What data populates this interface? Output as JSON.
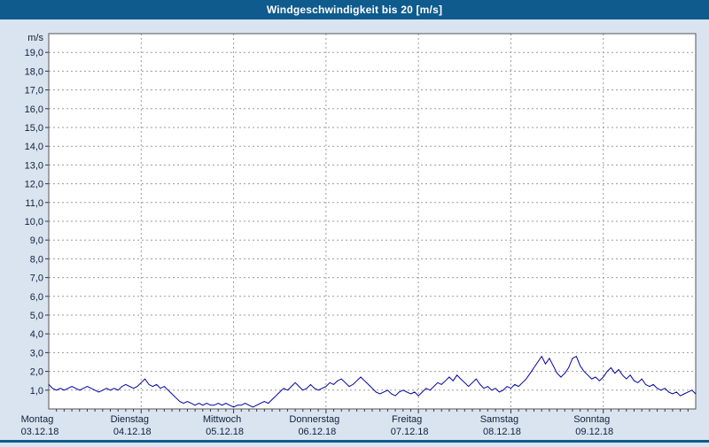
{
  "title": "Windgeschwindigkeit bis 20 [m/s]",
  "colors": {
    "title_bg": "#0f5b8d",
    "title_text": "#ffffff",
    "page_bg": "#dae4f0",
    "plot_bg": "#ffffff",
    "grid": "#9b9b9b",
    "plot_border": "#555555",
    "tick": "#333333",
    "line": "#0000a0",
    "axis_text": "#10203c"
  },
  "y_axis": {
    "unit_label": "m/s",
    "min": 0,
    "max": 20,
    "tick_labels": [
      "19,0",
      "18,0",
      "17,0",
      "16,0",
      "15,0",
      "14,0",
      "13,0",
      "12,0",
      "11,0",
      "10,0",
      "9,0",
      "8,0",
      "7,0",
      "6,0",
      "5,0",
      "4,0",
      "3,0",
      "2,0",
      "1,0"
    ]
  },
  "x_axis": {
    "days": [
      {
        "name": "Montag",
        "date": "03.12.18"
      },
      {
        "name": "Dienstag",
        "date": "04.12.18"
      },
      {
        "name": "Mittwoch",
        "date": "05.12.18"
      },
      {
        "name": "Donnerstag",
        "date": "06.12.18"
      },
      {
        "name": "Freitag",
        "date": "07.12.18"
      },
      {
        "name": "Samstag",
        "date": "08.12.18"
      },
      {
        "name": "Sonntag",
        "date": "09.12.18"
      }
    ]
  },
  "chart_data": {
    "type": "line",
    "title": "Windgeschwindigkeit bis 20 [m/s]",
    "ylabel": "m/s",
    "ylim": [
      0,
      20
    ],
    "grid": true,
    "x_axis_note": "hourly samples from Montag 03.12.18 00:00 to Sonntag 09.12.18 24:00",
    "categories": [
      "Montag 03.12.18",
      "Dienstag 04.12.18",
      "Mittwoch 05.12.18",
      "Donnerstag 06.12.18",
      "Freitag 07.12.18",
      "Samstag 08.12.18",
      "Sonntag 09.12.18"
    ],
    "series": [
      {
        "name": "Windgeschwindigkeit",
        "values": [
          1.3,
          1.1,
          1.0,
          1.1,
          1.0,
          1.1,
          1.2,
          1.1,
          1.0,
          1.1,
          1.2,
          1.1,
          1.0,
          0.9,
          1.0,
          1.1,
          1.0,
          1.1,
          1.0,
          1.2,
          1.3,
          1.2,
          1.1,
          1.2,
          1.4,
          1.6,
          1.3,
          1.2,
          1.3,
          1.1,
          1.2,
          1.0,
          0.8,
          0.6,
          0.4,
          0.3,
          0.4,
          0.3,
          0.2,
          0.3,
          0.2,
          0.3,
          0.2,
          0.2,
          0.3,
          0.2,
          0.3,
          0.2,
          0.1,
          0.2,
          0.2,
          0.3,
          0.2,
          0.1,
          0.2,
          0.3,
          0.4,
          0.3,
          0.5,
          0.7,
          0.9,
          1.1,
          1.0,
          1.2,
          1.4,
          1.2,
          1.0,
          1.1,
          1.3,
          1.1,
          1.0,
          1.1,
          1.2,
          1.4,
          1.3,
          1.5,
          1.6,
          1.4,
          1.2,
          1.3,
          1.5,
          1.7,
          1.5,
          1.3,
          1.1,
          0.9,
          0.8,
          0.9,
          1.0,
          0.8,
          0.7,
          0.9,
          1.0,
          0.9,
          0.8,
          0.9,
          0.7,
          0.9,
          1.1,
          1.0,
          1.2,
          1.4,
          1.3,
          1.5,
          1.7,
          1.5,
          1.8,
          1.6,
          1.4,
          1.2,
          1.4,
          1.6,
          1.3,
          1.1,
          1.2,
          1.0,
          1.1,
          0.9,
          1.0,
          1.2,
          1.1,
          1.3,
          1.2,
          1.4,
          1.6,
          1.9,
          2.2,
          2.5,
          2.8,
          2.4,
          2.7,
          2.3,
          1.9,
          1.7,
          1.9,
          2.2,
          2.7,
          2.8,
          2.3,
          2.0,
          1.8,
          1.6,
          1.7,
          1.5,
          1.7,
          2.0,
          2.2,
          1.9,
          2.1,
          1.8,
          1.6,
          1.8,
          1.5,
          1.4,
          1.6,
          1.3,
          1.2,
          1.3,
          1.1,
          1.0,
          1.1,
          0.9,
          0.8,
          0.9,
          0.7,
          0.8,
          0.9,
          1.0,
          0.8
        ]
      }
    ]
  }
}
